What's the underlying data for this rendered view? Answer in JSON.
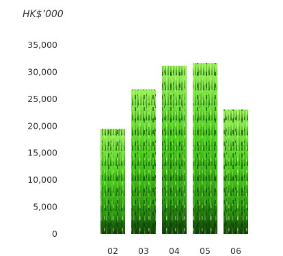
{
  "chart_data": {
    "type": "bar",
    "title": "",
    "unit_label": "HK$’000",
    "xlabel": "",
    "ylabel": "",
    "categories": [
      "02",
      "03",
      "04",
      "05",
      "06"
    ],
    "values": [
      19500,
      26800,
      31200,
      31700,
      23100
    ],
    "ylim": [
      0,
      35000
    ],
    "yticks": [
      "0",
      "5,000",
      "10,000",
      "15,000",
      "20,000",
      "25,000",
      "30,000",
      "35,000"
    ],
    "ytick_values": [
      0,
      5000,
      10000,
      15000,
      20000,
      25000,
      30000,
      35000
    ],
    "grid": false,
    "bar_texture": "grass",
    "colors": {
      "grass_light": "#8ef04a",
      "grass_mid": "#3fbf14",
      "grass_dark": "#0c3a05",
      "text": "#2b2b2b"
    }
  }
}
